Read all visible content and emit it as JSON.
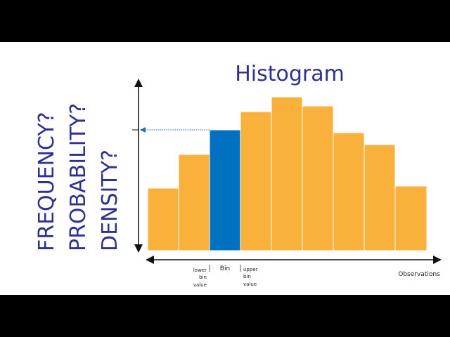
{
  "title": "Histogram",
  "y_axis_labels": [
    "FREQUENCY?",
    "PROBABILITY?",
    "DENSITY?"
  ],
  "x_axis_label": "Observations",
  "lower_bin_label": [
    "lower",
    "bin",
    "value"
  ],
  "bin_label": "Bin",
  "upper_bin_label": [
    "upper",
    "bin",
    "value"
  ]
}
